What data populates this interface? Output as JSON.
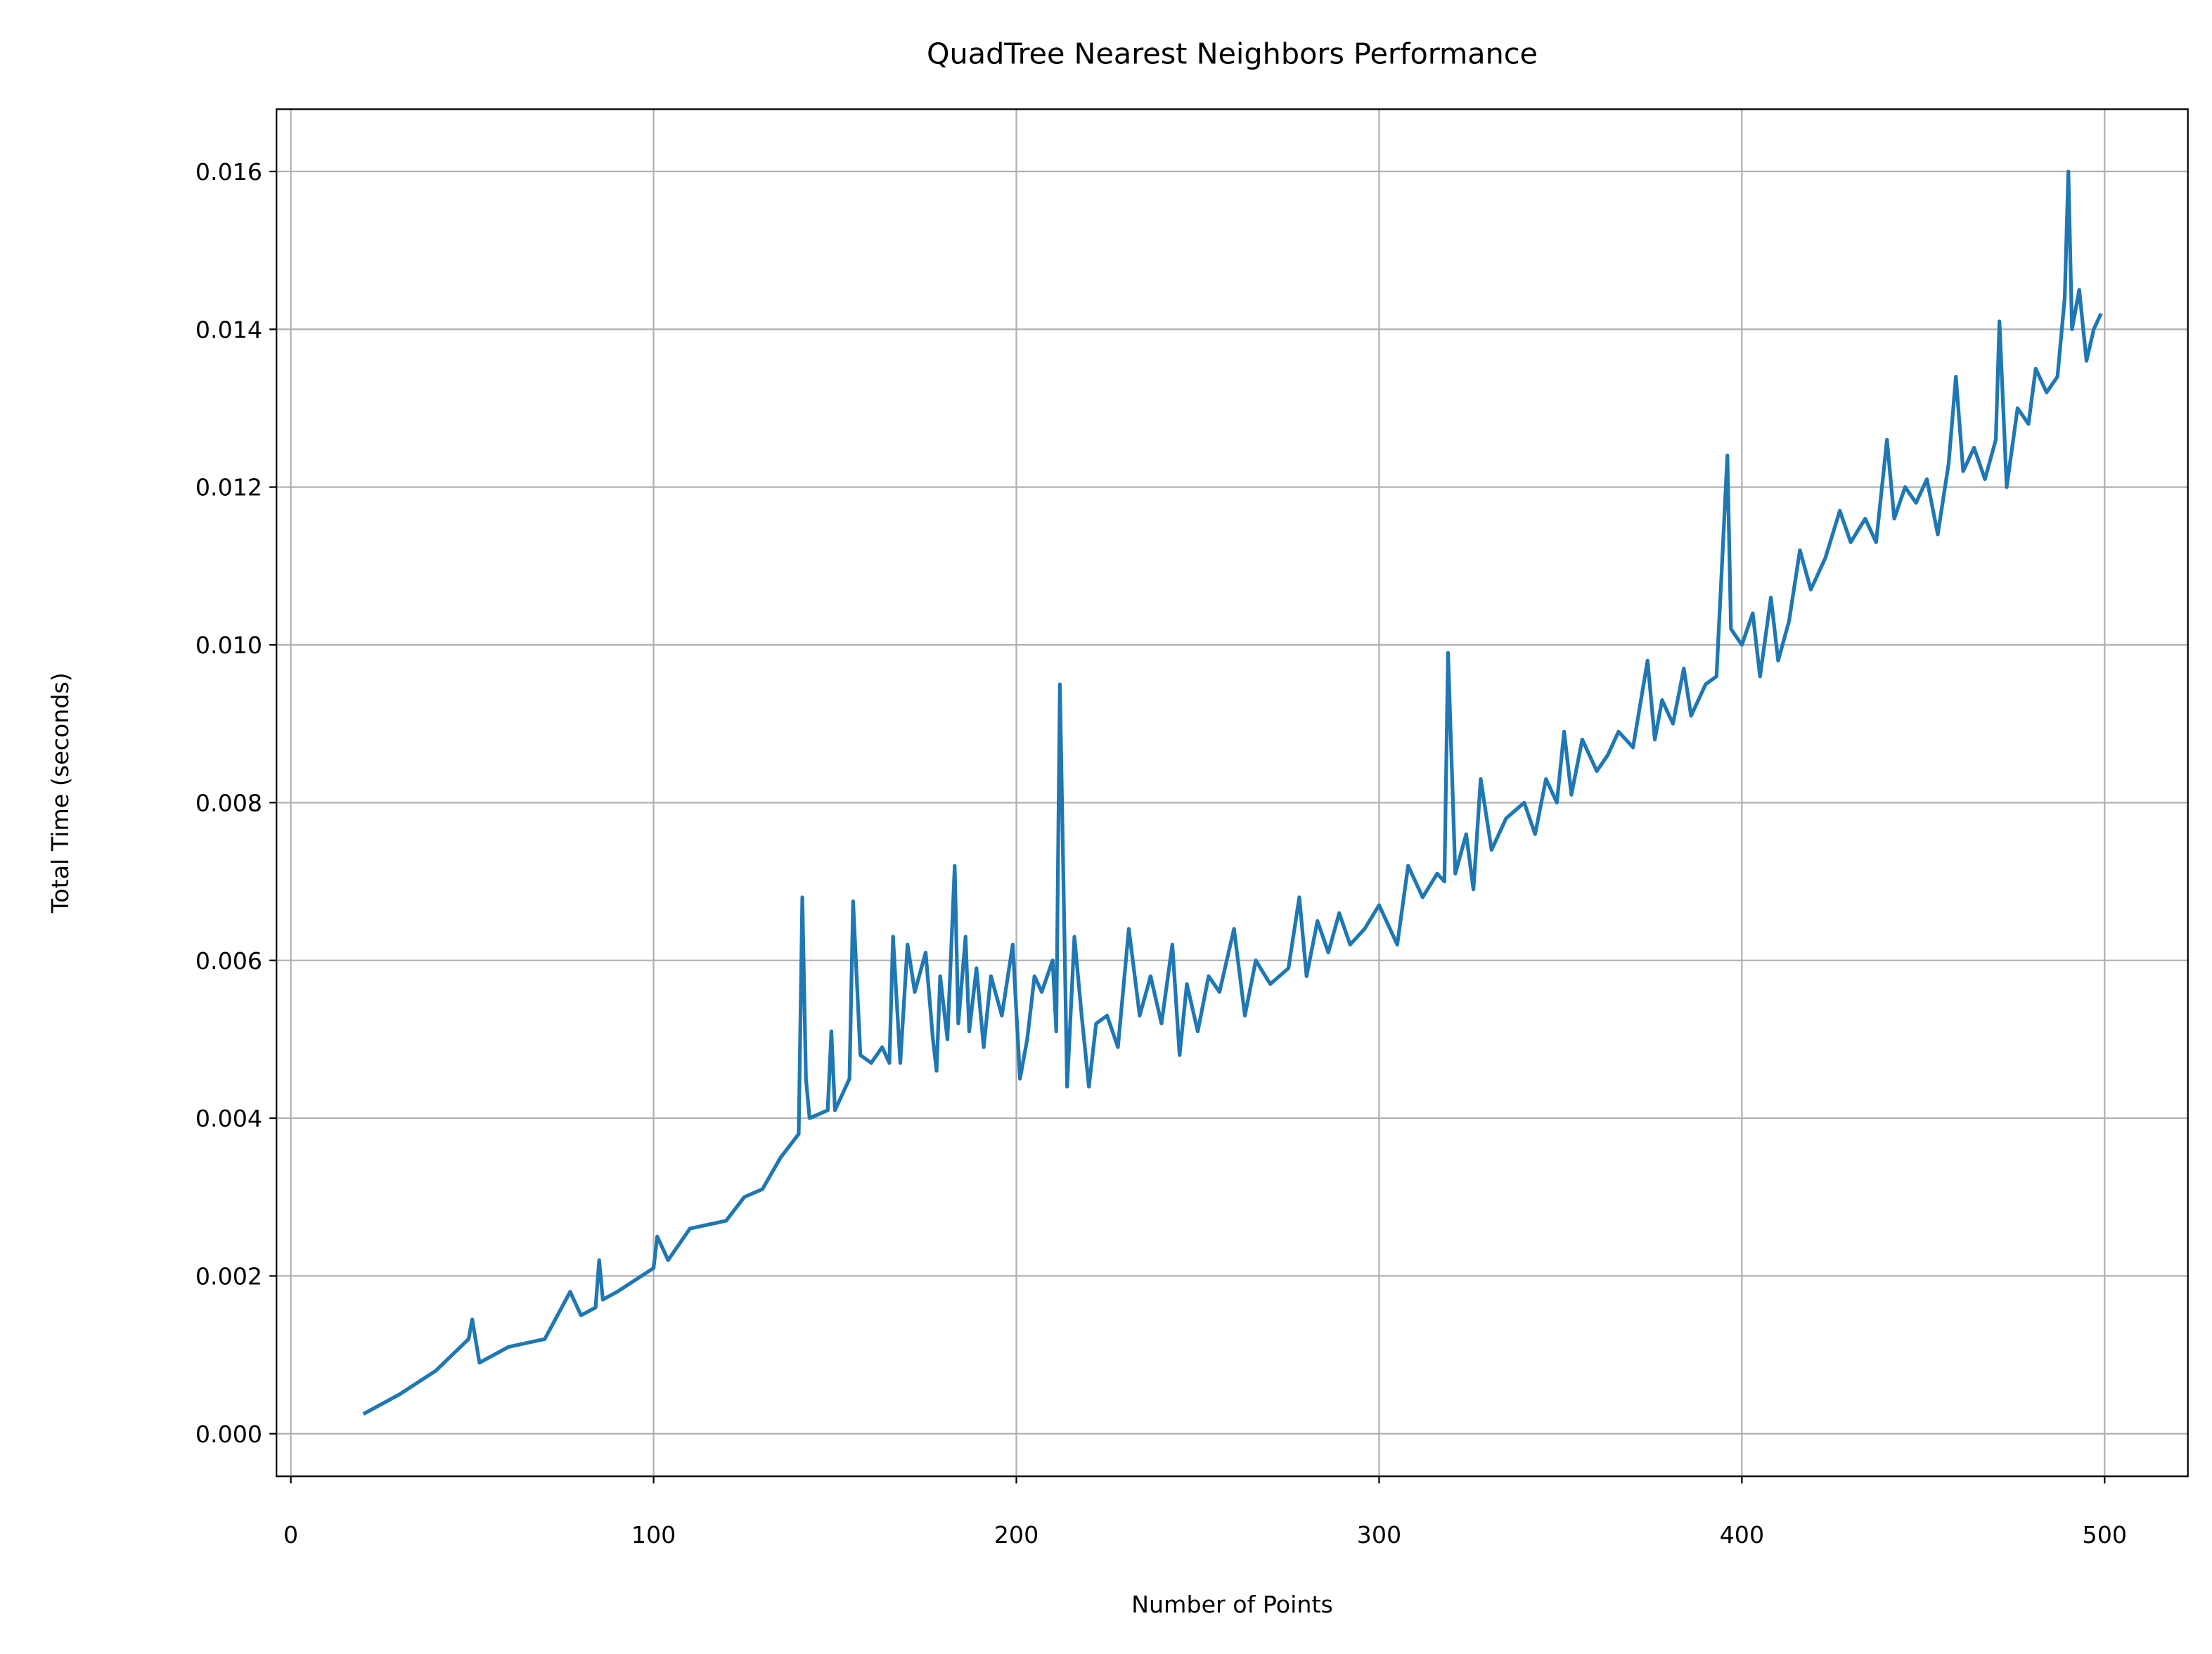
{
  "chart_data": {
    "type": "line",
    "title": "QuadTree Nearest Neighbors Performance",
    "x_label": "Number of Points",
    "y_label": "Total Time (seconds)",
    "x": [
      20,
      30,
      40,
      49,
      50,
      52,
      60,
      70,
      77,
      80,
      84,
      85,
      86,
      90,
      100,
      101,
      104,
      110,
      120,
      125,
      130,
      135,
      140,
      141,
      142,
      143,
      148,
      149,
      150,
      154,
      155,
      157,
      160,
      163,
      165,
      166,
      168,
      170,
      172,
      175,
      177,
      178,
      179,
      181,
      183,
      184,
      186,
      187,
      189,
      191,
      193,
      196,
      199,
      201,
      203,
      205,
      207,
      210,
      211,
      212,
      214,
      216,
      218,
      220,
      222,
      225,
      228,
      231,
      234,
      237,
      240,
      243,
      245,
      247,
      250,
      253,
      256,
      260,
      263,
      266,
      270,
      275,
      278,
      280,
      283,
      286,
      289,
      292,
      296,
      300,
      305,
      308,
      312,
      316,
      318,
      319,
      321,
      324,
      326,
      328,
      331,
      335,
      340,
      343,
      346,
      349,
      351,
      353,
      356,
      360,
      363,
      366,
      370,
      374,
      376,
      378,
      381,
      384,
      386,
      390,
      393,
      396,
      397,
      400,
      403,
      405,
      408,
      410,
      413,
      416,
      419,
      423,
      427,
      430,
      434,
      437,
      440,
      442,
      445,
      448,
      451,
      454,
      457,
      459,
      461,
      464,
      467,
      470,
      471,
      473,
      476,
      479,
      481,
      484,
      487,
      489,
      490,
      491,
      493,
      495,
      497,
      499
    ],
    "series": [
      {
        "name": "Total Time",
        "color": "#1f77b4",
        "values": [
          0.00025,
          0.0005,
          0.0008,
          0.0012,
          0.00145,
          0.0009,
          0.0011,
          0.0012,
          0.0018,
          0.0015,
          0.0016,
          0.0022,
          0.0017,
          0.0018,
          0.0021,
          0.0025,
          0.0022,
          0.0026,
          0.0027,
          0.003,
          0.0031,
          0.0035,
          0.0038,
          0.0068,
          0.0045,
          0.004,
          0.0041,
          0.0051,
          0.0041,
          0.0045,
          0.00675,
          0.0048,
          0.0047,
          0.0049,
          0.0047,
          0.0063,
          0.0047,
          0.0062,
          0.0056,
          0.0061,
          0.005,
          0.0046,
          0.0058,
          0.005,
          0.0072,
          0.0052,
          0.0063,
          0.0051,
          0.0059,
          0.0049,
          0.0058,
          0.0053,
          0.0062,
          0.0045,
          0.005,
          0.0058,
          0.0056,
          0.006,
          0.0051,
          0.0095,
          0.0044,
          0.0063,
          0.0053,
          0.0044,
          0.0052,
          0.0053,
          0.0049,
          0.0064,
          0.0053,
          0.0058,
          0.0052,
          0.0062,
          0.0048,
          0.0057,
          0.0051,
          0.0058,
          0.0056,
          0.0064,
          0.0053,
          0.006,
          0.0057,
          0.0059,
          0.0068,
          0.0058,
          0.0065,
          0.0061,
          0.0066,
          0.0062,
          0.0064,
          0.0067,
          0.0062,
          0.0072,
          0.0068,
          0.0071,
          0.007,
          0.0099,
          0.0071,
          0.0076,
          0.0069,
          0.0083,
          0.0074,
          0.0078,
          0.008,
          0.0076,
          0.0083,
          0.008,
          0.0089,
          0.0081,
          0.0088,
          0.0084,
          0.0086,
          0.0089,
          0.0087,
          0.0098,
          0.0088,
          0.0093,
          0.009,
          0.0097,
          0.0091,
          0.0095,
          0.0096,
          0.0124,
          0.0102,
          0.01,
          0.0104,
          0.0096,
          0.0106,
          0.0098,
          0.0103,
          0.0112,
          0.0107,
          0.0111,
          0.0117,
          0.0113,
          0.0116,
          0.0113,
          0.0126,
          0.0116,
          0.012,
          0.0118,
          0.0121,
          0.0114,
          0.0123,
          0.0134,
          0.0122,
          0.0125,
          0.0121,
          0.0126,
          0.0141,
          0.012,
          0.013,
          0.0128,
          0.0135,
          0.0132,
          0.0134,
          0.0144,
          0.016,
          0.014,
          0.0145,
          0.0136,
          0.014,
          0.0142
        ]
      }
    ],
    "xlim": [
      -3.95,
      522.95
    ],
    "ylim": [
      -0.00054,
      0.01679
    ],
    "xticks": [
      0,
      100,
      200,
      300,
      400,
      500
    ],
    "yticks": [
      {
        "value": 0,
        "label": "0.000"
      },
      {
        "value": 0.002,
        "label": "0.002"
      },
      {
        "value": 0.004,
        "label": "0.004"
      },
      {
        "value": 0.006,
        "label": "0.006"
      },
      {
        "value": 0.008,
        "label": "0.008"
      },
      {
        "value": 0.01,
        "label": "0.010"
      },
      {
        "value": 0.012,
        "label": "0.012"
      },
      {
        "value": 0.014,
        "label": "0.014"
      },
      {
        "value": 0.016,
        "label": "0.016"
      }
    ],
    "grid": true
  }
}
